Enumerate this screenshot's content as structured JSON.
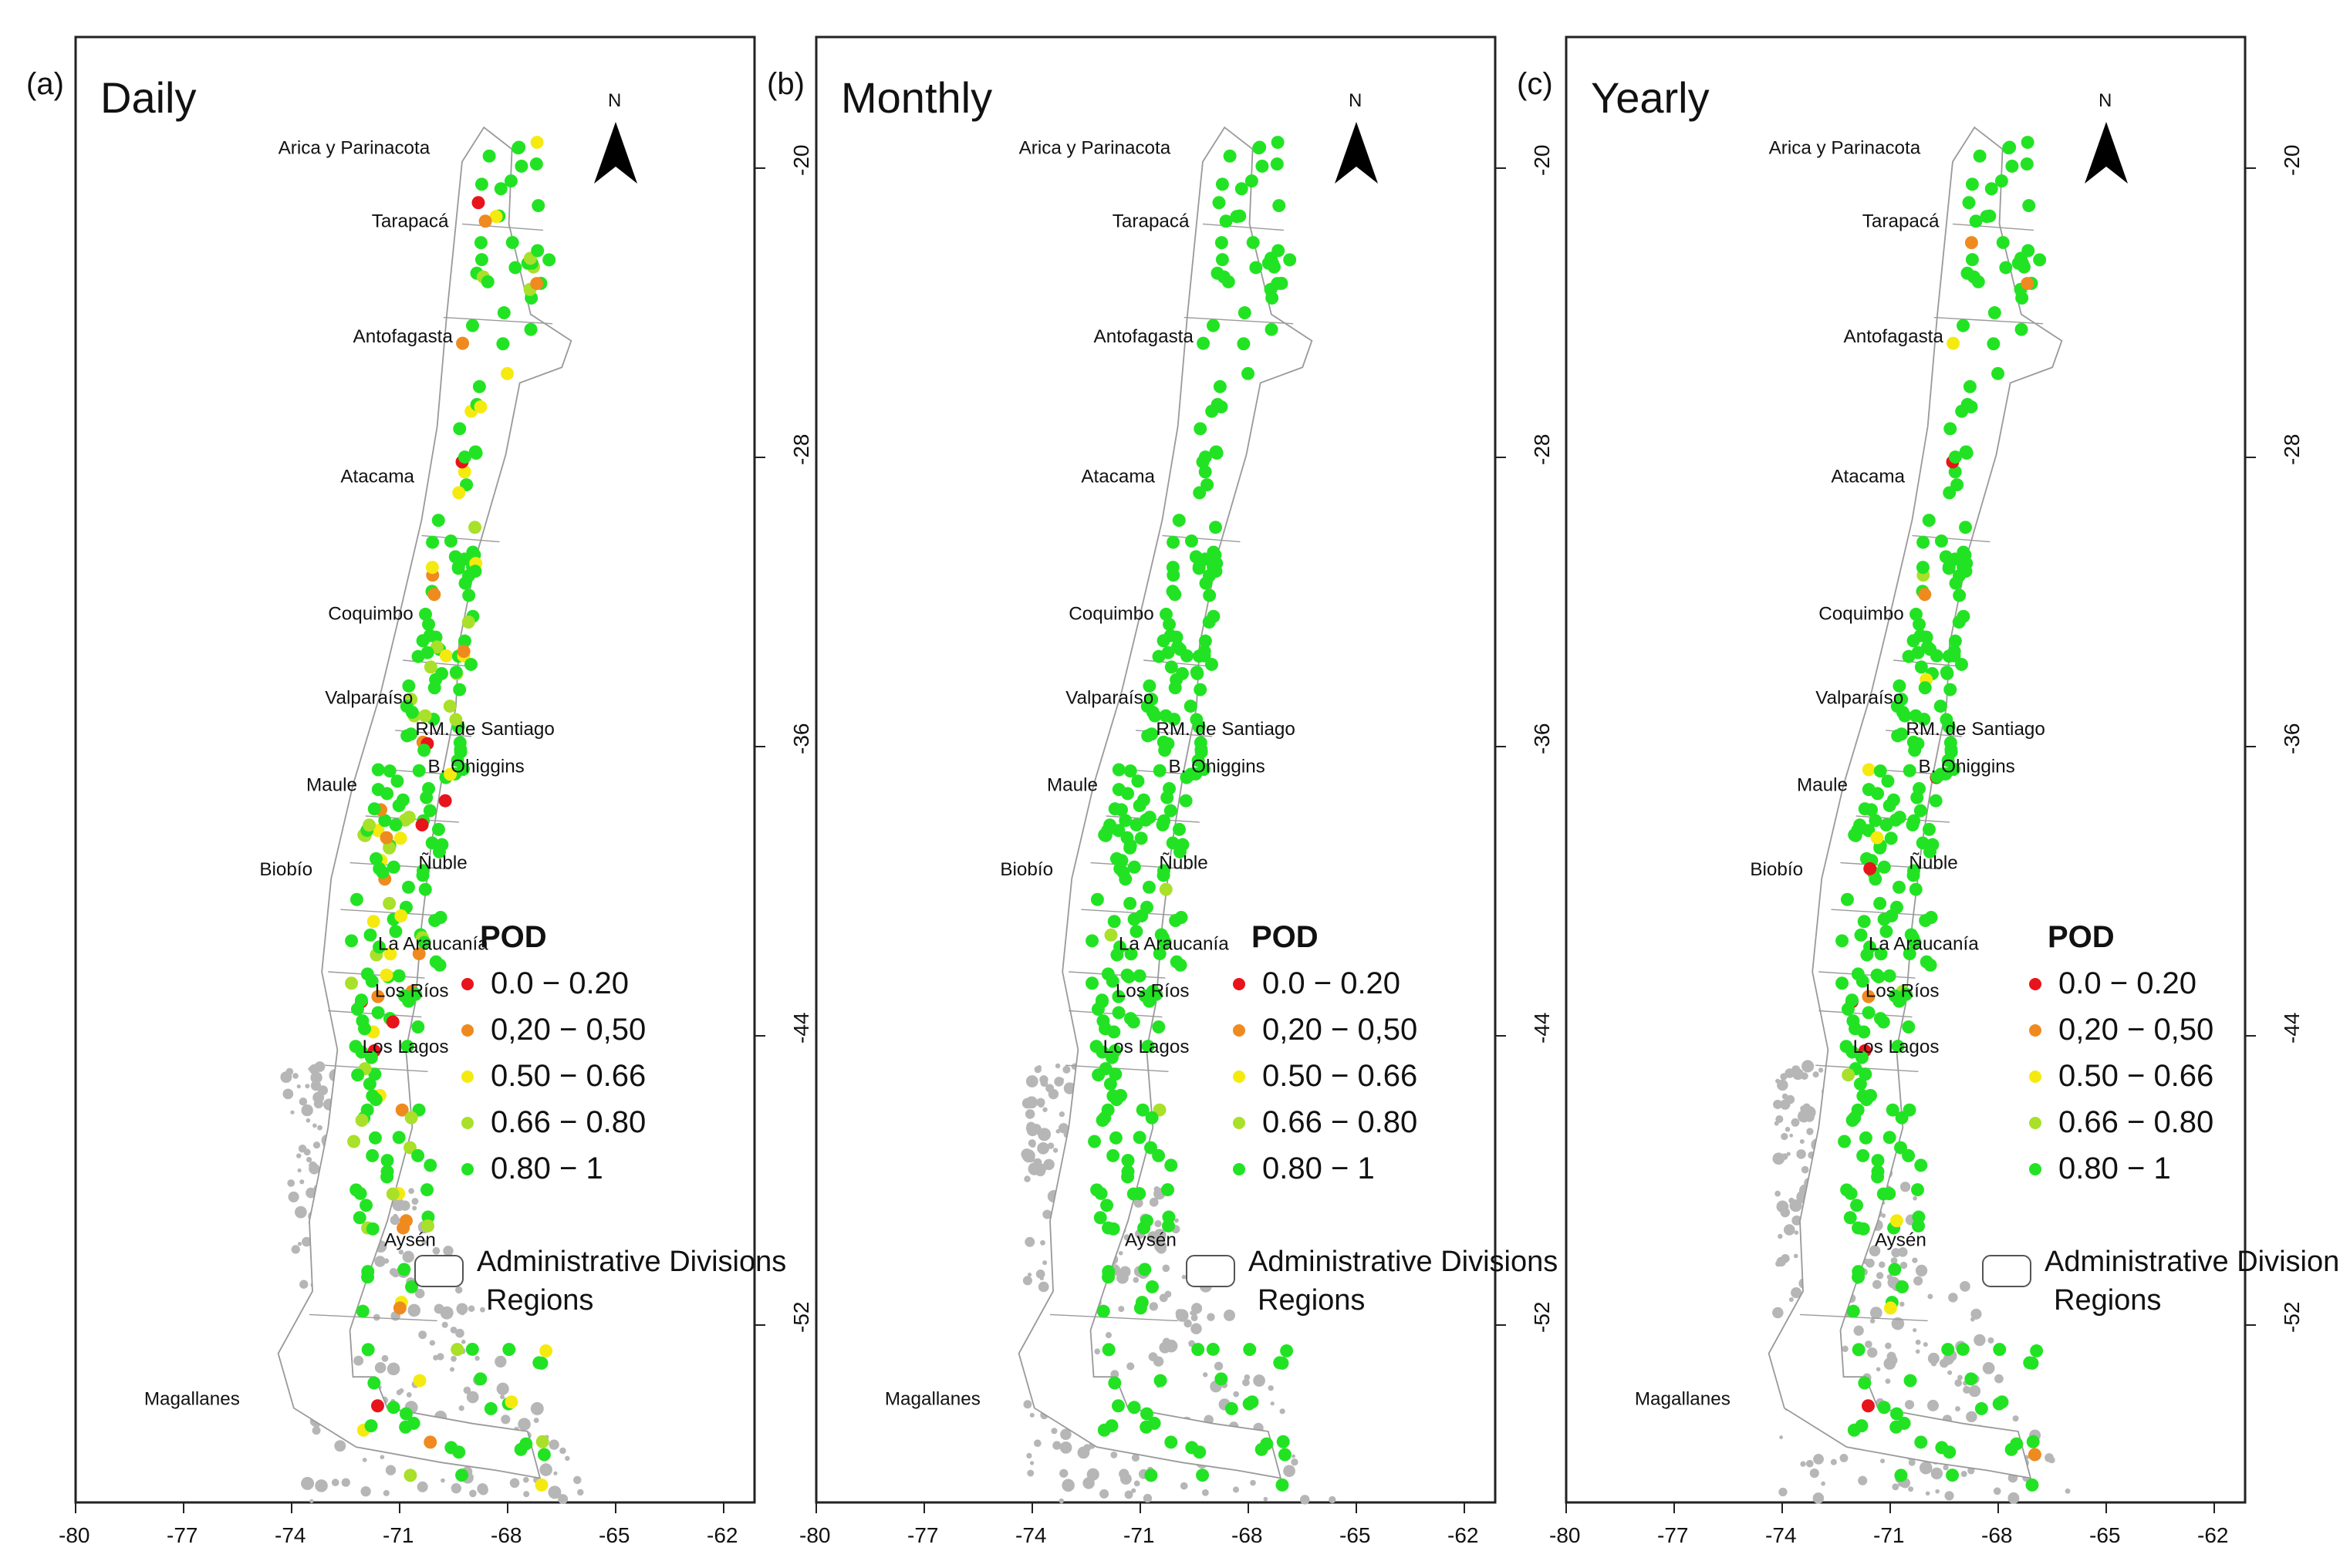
{
  "figure": {
    "panels": [
      {
        "letter": "(a)",
        "title": "Daily"
      },
      {
        "letter": "(b)",
        "title": "Monthly"
      },
      {
        "letter": "(c)",
        "title": "Yearly"
      }
    ],
    "north_label": "N",
    "x_ticks": [
      "-80",
      "-77",
      "-74",
      "-71",
      "-68",
      "-65",
      "-62"
    ],
    "y_ticks": [
      "-20",
      "-28",
      "-36",
      "-44",
      "-52"
    ],
    "regions": [
      "Arica y Parinacota",
      "Tarapacá",
      "Antofagasta",
      "Atacama",
      "Coquimbo",
      "Valparaíso",
      "RM. de Santiago",
      "B. Ohiggins",
      "Maule",
      "Ñuble",
      "Biobío",
      "La Araucanía",
      "Los Ríos",
      "Los Lagos",
      "Aysén",
      "Magallanes"
    ],
    "legend": {
      "title": "POD",
      "classes": [
        {
          "label": "0.0 − 0.20",
          "color": "#e8141b"
        },
        {
          "label": "0,20 − 0,50",
          "color": "#ef8a1f"
        },
        {
          "label": "0.50 − 0.66",
          "color": "#f5ea10"
        },
        {
          "label": "0.66 − 0.80",
          "color": "#a9e02a"
        },
        {
          "label": "0.80 − 1",
          "color": "#22e323"
        }
      ],
      "boundary_line1": "Administrative Divisions",
      "boundary_line2": "Regions"
    }
  },
  "colors": {
    "land": "#ffffff",
    "outline": "#9a9a9a",
    "archipelago": "#b6b6b6",
    "station_default": "#22e323"
  }
}
